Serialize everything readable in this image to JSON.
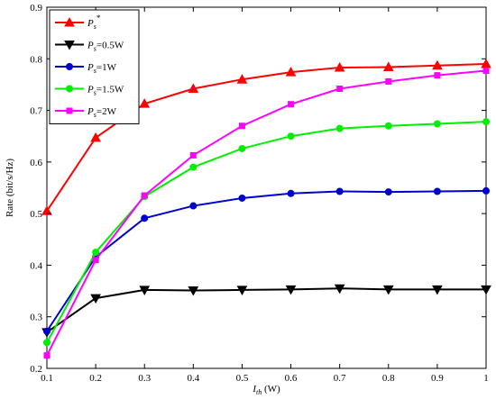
{
  "chart_data": {
    "type": "line",
    "xlabel": "I_th (W)",
    "xlabel_parts": {
      "main": "I",
      "sub": "th",
      "rest": " (W)"
    },
    "ylabel": "Rate (bit/s/Hz)",
    "xlim": [
      0.1,
      1
    ],
    "ylim": [
      0.2,
      0.9
    ],
    "xticks": [
      0.1,
      0.2,
      0.3,
      0.4,
      0.5,
      0.6,
      0.7,
      0.8,
      0.9,
      1
    ],
    "xtick_labels": [
      "0.1",
      "0.2",
      "0.3",
      "0.4",
      "0.5",
      "0.6",
      "0.7",
      "0.8",
      "0.9",
      "1"
    ],
    "yticks": [
      0.2,
      0.3,
      0.4,
      0.5,
      0.6,
      0.7,
      0.8,
      0.9
    ],
    "ytick_labels": [
      "0.2",
      "0.3",
      "0.4",
      "0.5",
      "0.6",
      "0.7",
      "0.8",
      "0.9"
    ],
    "grid": false,
    "legend_position": "top-left",
    "x": [
      0.1,
      0.2,
      0.3,
      0.4,
      0.5,
      0.6,
      0.7,
      0.8,
      0.9,
      1
    ],
    "series": [
      {
        "name": "Ps*",
        "label_main": "P",
        "label_sub": "s",
        "label_sup": "*",
        "label_rest": "",
        "color": "#ff0000",
        "marker": "triangle-up",
        "values": [
          0.505,
          0.647,
          0.713,
          0.742,
          0.76,
          0.774,
          0.783,
          0.784,
          0.787,
          0.79
        ]
      },
      {
        "name": "Ps=0.5W",
        "label_main": "P",
        "label_sub": "s",
        "label_sup": "",
        "label_rest": "=0.5W",
        "color": "#000000",
        "marker": "triangle-down",
        "values": [
          0.27,
          0.336,
          0.352,
          0.351,
          0.352,
          0.353,
          0.355,
          0.353,
          0.353,
          0.353
        ]
      },
      {
        "name": "Ps=1W",
        "label_main": "P",
        "label_sub": "s",
        "label_sup": "",
        "label_rest": "=1W",
        "color": "#0000cc",
        "marker": "circle",
        "values": [
          0.272,
          0.416,
          0.491,
          0.515,
          0.53,
          0.539,
          0.543,
          0.542,
          0.543,
          0.544
        ]
      },
      {
        "name": "Ps=1.5W",
        "label_main": "P",
        "label_sub": "s",
        "label_sup": "",
        "label_rest": "=1.5W",
        "color": "#00ee00",
        "marker": "circle",
        "values": [
          0.25,
          0.425,
          0.533,
          0.59,
          0.626,
          0.65,
          0.665,
          0.67,
          0.674,
          0.678
        ]
      },
      {
        "name": "Ps=2W",
        "label_main": "P",
        "label_sub": "s",
        "label_sup": "",
        "label_rest": "=2W",
        "color": "#ff00ff",
        "marker": "square",
        "values": [
          0.225,
          0.41,
          0.535,
          0.613,
          0.67,
          0.712,
          0.742,
          0.756,
          0.768,
          0.777
        ]
      }
    ]
  }
}
